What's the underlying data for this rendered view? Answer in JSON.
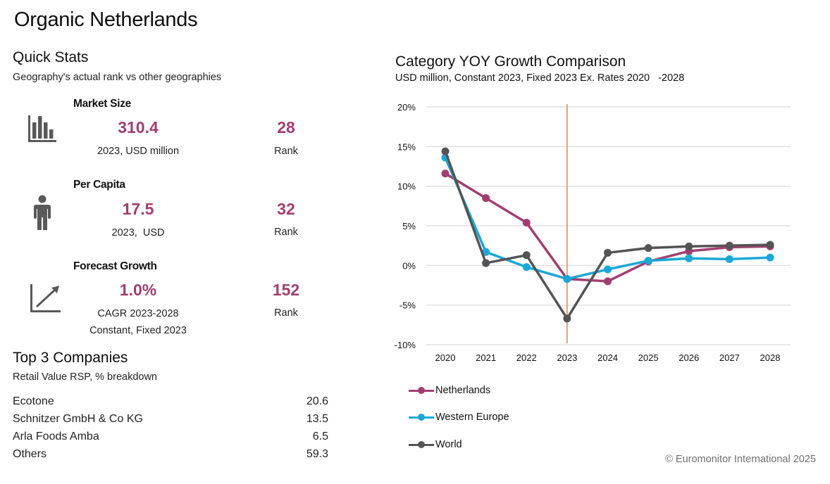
{
  "page": {
    "title": "Organic Netherlands",
    "copyright": "© Euromonitor International 2025"
  },
  "quick_stats": {
    "title": "Quick Stats",
    "subtitle": "Geography's actual rank vs other geographies",
    "items": [
      {
        "label": "Market Size",
        "icon": "bar-chart-icon",
        "value": "310.4",
        "note": "2023, USD million",
        "note2": "",
        "rank": "28",
        "rank_label": "Rank"
      },
      {
        "label": "Per Capita",
        "icon": "person-icon",
        "value": "17.5",
        "note": "2023,  USD",
        "note2": "",
        "rank": "32",
        "rank_label": "Rank"
      },
      {
        "label": "Forecast Growth",
        "icon": "trend-up-icon",
        "value": "1.0%",
        "note": "CAGR 2023-2028",
        "note2": "Constant, Fixed 2023",
        "rank": "152",
        "rank_label": "Rank"
      }
    ]
  },
  "top_companies": {
    "title": "Top 3 Companies",
    "subtitle": "Retail Value RSP, % breakdown",
    "rows": [
      {
        "name": "Ecotone",
        "value": "20.6"
      },
      {
        "name": "Schnitzer GmbH & Co KG",
        "value": "13.5"
      },
      {
        "name": "Arla Foods Amba",
        "value": "6.5"
      },
      {
        "name": "Others",
        "value": "59.3"
      }
    ]
  },
  "chart_data": {
    "type": "line",
    "title": "Category YOY Growth Comparison",
    "subtitle": "USD million, Constant 2023, Fixed 2023 Ex. Rates 2020   -2028",
    "xlabel": "",
    "ylabel": "",
    "x": [
      "2020",
      "2021",
      "2022",
      "2023",
      "2024",
      "2025",
      "2026",
      "2027",
      "2028"
    ],
    "ylim": [
      -10,
      20
    ],
    "yticks": [
      20,
      15,
      10,
      5,
      0,
      -5,
      -10
    ],
    "ytick_labels": [
      "20%",
      "15%",
      "10%",
      "5%",
      "0%",
      "-5%",
      "-10%"
    ],
    "grid": true,
    "marker_line_at": "2023",
    "legend_position": "bottom-left",
    "series": [
      {
        "name": "Netherlands",
        "color": "#a03f6f",
        "values": [
          11.6,
          8.5,
          5.4,
          -1.7,
          -2.0,
          0.5,
          1.8,
          2.3,
          2.4
        ]
      },
      {
        "name": "Western Europe",
        "color": "#1ba8d6",
        "values": [
          13.6,
          1.7,
          -0.2,
          -1.7,
          -0.5,
          0.6,
          0.9,
          0.8,
          1.0
        ]
      },
      {
        "name": "World",
        "color": "#545454",
        "values": [
          14.4,
          0.3,
          1.3,
          -6.7,
          1.6,
          2.2,
          2.4,
          2.5,
          2.6
        ]
      }
    ],
    "colors": {
      "marker_line": "#e69a5a",
      "grid": "#d9d9d9"
    }
  }
}
